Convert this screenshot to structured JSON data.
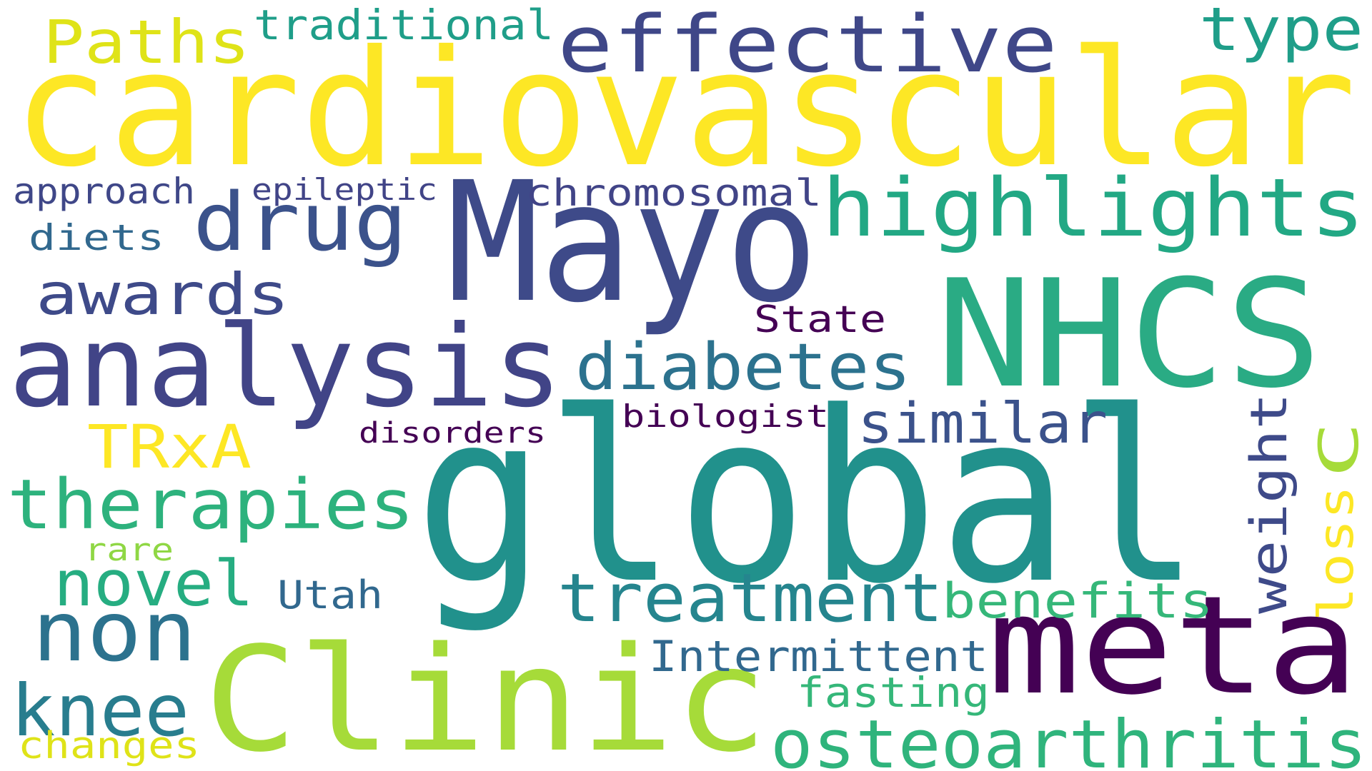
{
  "palette": {
    "dark_purple": "#440154",
    "indigo": "#3e4a89",
    "blue": "#31688e",
    "teal": "#26828e",
    "green_teal": "#1f9e89",
    "green": "#35b779",
    "light_green": "#6ece58",
    "yellow_green": "#b5de2b",
    "yellow": "#fde725",
    "background": "#ffffff"
  },
  "words": {
    "cardiovascular": "cardiovascular",
    "global": "global",
    "mayo": "Mayo",
    "nhcs": "NHCS",
    "clinic": "Clinic",
    "meta": "meta",
    "analysis": "analysis",
    "effective": "effective",
    "highlights": "highlights",
    "drug": "drug",
    "non": "non",
    "diabetes": "diabetes",
    "treatment": "treatment",
    "osteoarthritis": "osteoarthritis",
    "therapies": "therapies",
    "knee": "knee",
    "novel": "novel",
    "awards": "awards",
    "paths": "Paths",
    "similar": "similar",
    "type": "type",
    "trxa": "TRxA",
    "benefits": "benefits",
    "weight": "weight",
    "loss": "loss",
    "c": "C",
    "traditional": "traditional",
    "intermittent": "Intermittent",
    "fasting": "fasting",
    "chromosomal": "chromosomal",
    "approach": "approach",
    "state": "State",
    "utah": "Utah",
    "diets": "diets",
    "changes": "changes",
    "epileptic": "epileptic",
    "biologist": "biologist",
    "disorders": "disorders",
    "rare": "rare"
  }
}
